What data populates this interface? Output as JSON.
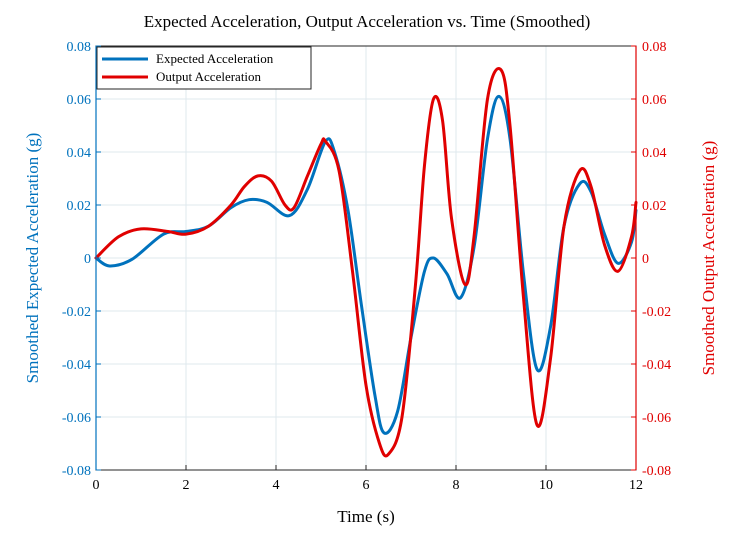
{
  "chart_data": {
    "type": "line",
    "title": "Expected Acceleration, Output Acceleration vs. Time (Smoothed)",
    "xlabel": "Time (s)",
    "ylabel_left": "Smoothed Expected Acceleration (g)",
    "ylabel_right": "Smoothed Output Acceleration (g)",
    "xlim": [
      0,
      12
    ],
    "ylim_left": [
      -0.08,
      0.08
    ],
    "ylim_right": [
      -0.08,
      0.08
    ],
    "xticks": [
      0,
      2,
      4,
      6,
      8,
      10,
      12
    ],
    "xtick_labels": [
      "0",
      "2",
      "4",
      "6",
      "8",
      "10",
      "12"
    ],
    "yticks": [
      -0.08,
      -0.06,
      -0.04,
      -0.02,
      0,
      0.02,
      0.04,
      0.06,
      0.08
    ],
    "ytick_labels": [
      "-0.08",
      "-0.06",
      "-0.04",
      "-0.02",
      "0",
      "0.02",
      "0.04",
      "0.06",
      "0.08"
    ],
    "grid": true,
    "legend_position": "top-left",
    "series": [
      {
        "name": "Expected Acceleration",
        "axis": "left",
        "color": "#0072BD",
        "x": [
          0,
          0.3,
          0.8,
          1.5,
          2.0,
          2.5,
          3.0,
          3.4,
          3.8,
          4.3,
          4.7,
          5.1,
          5.3,
          5.6,
          5.9,
          6.2,
          6.4,
          6.7,
          7.0,
          7.3,
          7.5,
          7.8,
          8.1,
          8.4,
          8.7,
          8.95,
          9.2,
          9.5,
          9.8,
          10.1,
          10.4,
          10.75,
          11.0,
          11.3,
          11.6,
          11.9,
          12.0
        ],
        "y": [
          0,
          -0.003,
          -0.0005,
          0.009,
          0.01,
          0.012,
          0.019,
          0.022,
          0.021,
          0.016,
          0.026,
          0.044,
          0.04,
          0.018,
          -0.018,
          -0.052,
          -0.066,
          -0.058,
          -0.03,
          -0.005,
          0.0,
          -0.006,
          -0.015,
          0.004,
          0.045,
          0.061,
          0.045,
          -0.006,
          -0.042,
          -0.026,
          0.012,
          0.028,
          0.025,
          0.009,
          -0.002,
          0.006,
          0.018
        ]
      },
      {
        "name": "Output Acceleration",
        "axis": "right",
        "color": "#E00000",
        "x": [
          0,
          0.5,
          1.0,
          1.6,
          2.0,
          2.5,
          3.0,
          3.3,
          3.6,
          3.9,
          4.2,
          4.4,
          4.7,
          5.0,
          5.1,
          5.4,
          5.7,
          6.0,
          6.3,
          6.5,
          6.8,
          7.1,
          7.3,
          7.5,
          7.7,
          7.9,
          8.2,
          8.4,
          8.7,
          9.0,
          9.2,
          9.5,
          9.8,
          10.1,
          10.4,
          10.75,
          11.0,
          11.3,
          11.6,
          11.9,
          12.0
        ],
        "y": [
          0,
          0.008,
          0.011,
          0.01,
          0.009,
          0.012,
          0.02,
          0.027,
          0.031,
          0.029,
          0.02,
          0.019,
          0.031,
          0.043,
          0.044,
          0.033,
          -0.005,
          -0.048,
          -0.07,
          -0.074,
          -0.06,
          -0.01,
          0.035,
          0.06,
          0.052,
          0.015,
          -0.01,
          0.008,
          0.06,
          0.071,
          0.05,
          -0.015,
          -0.063,
          -0.038,
          0.012,
          0.033,
          0.027,
          0.005,
          -0.005,
          0.008,
          0.021
        ]
      }
    ]
  }
}
